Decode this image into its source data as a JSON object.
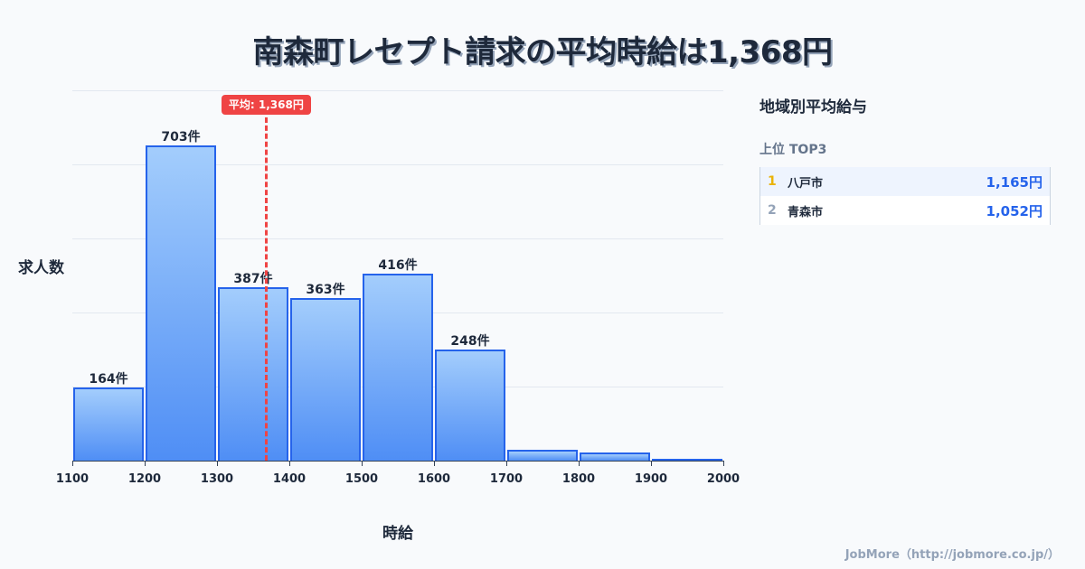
{
  "title": "南森町レセプト請求の平均時給は1,368円",
  "chart_data": {
    "type": "bar",
    "subtype": "histogram",
    "title": "南森町レセプト請求の平均時給は1,368円",
    "xlabel": "時給",
    "ylabel": "求人数",
    "bins": [
      {
        "start": 1100,
        "end": 1200,
        "value": 164,
        "label": "164件"
      },
      {
        "start": 1200,
        "end": 1300,
        "value": 703,
        "label": "703件"
      },
      {
        "start": 1300,
        "end": 1400,
        "value": 387,
        "label": "387件"
      },
      {
        "start": 1400,
        "end": 1500,
        "value": 363,
        "label": "363件"
      },
      {
        "start": 1500,
        "end": 1600,
        "value": 416,
        "label": "416件"
      },
      {
        "start": 1600,
        "end": 1700,
        "value": 248,
        "label": "248件"
      },
      {
        "start": 1700,
        "end": 1800,
        "value": 24,
        "label": ""
      },
      {
        "start": 1800,
        "end": 1900,
        "value": 18,
        "label": ""
      },
      {
        "start": 1900,
        "end": 2000,
        "value": 2,
        "label": ""
      }
    ],
    "categories": [
      "1100-1200",
      "1200-1300",
      "1300-1400",
      "1400-1500",
      "1500-1600",
      "1600-1700",
      "1700-1800",
      "1800-1900",
      "1900-2000"
    ],
    "values": [
      164,
      703,
      387,
      363,
      416,
      248,
      24,
      18,
      2
    ],
    "x_ticks": [
      "1100",
      "1200",
      "1300",
      "1400",
      "1500",
      "1600",
      "1700",
      "1800",
      "1900",
      "2000"
    ],
    "xlim": [
      1100,
      2000
    ],
    "ylim": [
      0,
      825
    ],
    "grid": true,
    "mean": {
      "value": 1368,
      "label": "平均: 1,368円",
      "color": "#ef4444"
    },
    "bar_color": "#4f8ef5",
    "bar_border_color": "#2563eb"
  },
  "sidebar": {
    "title": "地域別平均給与",
    "subtitle": "上位 TOP3",
    "ranks": [
      {
        "rank": "1",
        "city": "八戸市",
        "value": "1,165円"
      },
      {
        "rank": "2",
        "city": "青森市",
        "value": "1,052円"
      }
    ]
  },
  "footer": "JobMore（http://jobmore.co.jp/）"
}
